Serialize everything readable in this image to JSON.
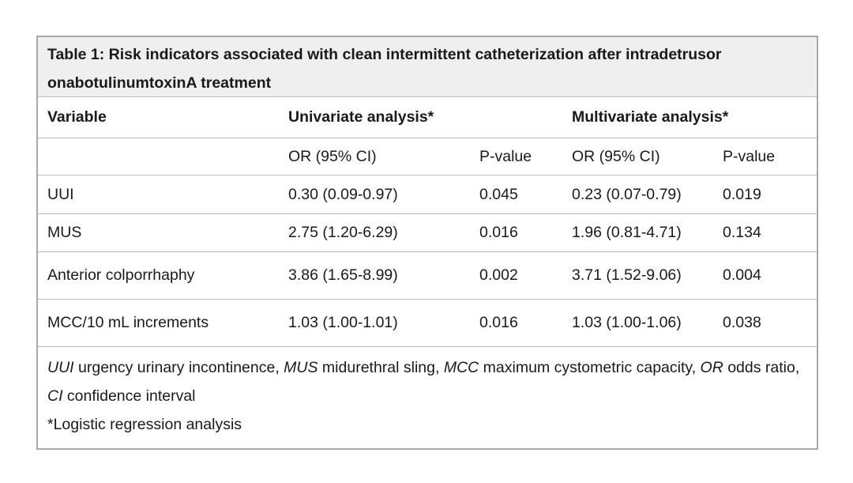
{
  "table": {
    "title": "Table 1: Risk indicators associated with clean intermittent catheterization after intradetrusor onabotulinumtoxinA treatment",
    "header": {
      "variable": "Variable",
      "univariate": "Univariate analysis*",
      "multivariate": "Multivariate analysis*"
    },
    "subheader": {
      "or_uni": "OR (95% CI)",
      "p_uni": "P-value",
      "or_multi": "OR (95% CI)",
      "p_multi": "P-value"
    },
    "rows": [
      {
        "variable": "UUI",
        "or_uni": "0.30 (0.09-0.97)",
        "p_uni": "0.045",
        "or_multi": "0.23 (0.07-0.79)",
        "p_multi": "0.019"
      },
      {
        "variable": "MUS",
        "or_uni": "2.75 (1.20-6.29)",
        "p_uni": "0.016",
        "or_multi": "1.96 (0.81-4.71)",
        "p_multi": "0.134"
      },
      {
        "variable": "Anterior colporrhaphy",
        "or_uni": "3.86 (1.65-8.99)",
        "p_uni": "0.002",
        "or_multi": "3.71 (1.52-9.06)",
        "p_multi": "0.004"
      },
      {
        "variable": "MCC/10 mL increments",
        "or_uni": "1.03 (1.00-1.01)",
        "p_uni": "0.016",
        "or_multi": "1.03 (1.00-1.06)",
        "p_multi": "0.038"
      }
    ],
    "footnote": {
      "abbr": [
        {
          "term": "UUI",
          "def": " urgency urinary incontinence, "
        },
        {
          "term": "MUS",
          "def": " midurethral sling, "
        },
        {
          "term": "MCC",
          "def": " maximum cystometric capacity, "
        },
        {
          "term": "OR",
          "def": " odds ratio, "
        },
        {
          "term": "CI",
          "def": " confidence interval"
        }
      ],
      "note": "*Logistic regression analysis"
    }
  }
}
